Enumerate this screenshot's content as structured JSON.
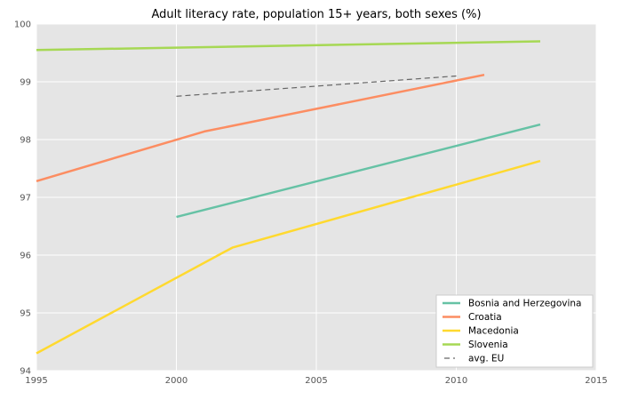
{
  "chart_data": {
    "type": "line",
    "title": "Adult literacy rate, population 15+ years, both sexes (%)",
    "xlabel": "",
    "ylabel": "",
    "xlim": [
      1995,
      2015
    ],
    "ylim": [
      94,
      100
    ],
    "xticks": [
      1995,
      2000,
      2005,
      2010,
      2015
    ],
    "yticks": [
      94,
      95,
      96,
      97,
      98,
      99,
      100
    ],
    "grid": true,
    "legend_position": "lower-right",
    "series": [
      {
        "name": "Bosnia and Herzegovina",
        "color": "#66c2a5",
        "dashed": false,
        "points": [
          [
            2000,
            96.66
          ],
          [
            2013,
            98.26
          ]
        ]
      },
      {
        "name": "Croatia",
        "color": "#fc8d62",
        "dashed": false,
        "points": [
          [
            1995,
            97.28
          ],
          [
            2001,
            98.14
          ],
          [
            2011,
            99.12
          ]
        ]
      },
      {
        "name": "Macedonia",
        "color": "#ffd92f",
        "dashed": false,
        "points": [
          [
            1995,
            94.3
          ],
          [
            2002,
            96.13
          ],
          [
            2013,
            97.63
          ]
        ]
      },
      {
        "name": "Slovenia",
        "color": "#a6d854",
        "dashed": false,
        "points": [
          [
            1995,
            99.55
          ],
          [
            2013,
            99.7
          ]
        ]
      },
      {
        "name": "avg. EU",
        "color": "#666666",
        "dashed": true,
        "points": [
          [
            2000,
            98.75
          ],
          [
            2010,
            99.1
          ]
        ]
      }
    ]
  }
}
